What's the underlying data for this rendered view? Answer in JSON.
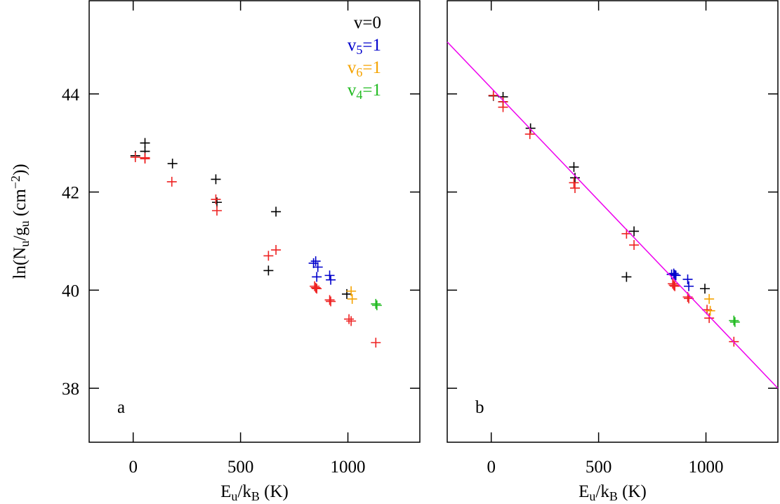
{
  "chart_data": [
    {
      "type": "scatter",
      "xlim": [
        -205,
        1335
      ],
      "ylim": [
        36.9,
        45.9
      ],
      "xticks": [
        0,
        500,
        1000
      ],
      "yticks": [
        38,
        40,
        42,
        44
      ],
      "ytick_labels": true,
      "xlabel": [
        {
          "text": "E"
        },
        {
          "text": "u",
          "script": "sub"
        },
        {
          "text": "/k"
        },
        {
          "text": "B",
          "script": "sub"
        },
        {
          "text": " (K)"
        }
      ],
      "ylabel": [
        {
          "text": "ln(N"
        },
        {
          "text": "u",
          "script": "sub"
        },
        {
          "text": "/g"
        },
        {
          "text": "u",
          "script": "sub"
        },
        {
          "text": " (cm"
        },
        {
          "text": "−2",
          "script": "super"
        },
        {
          "text": "))"
        }
      ],
      "annotation": "a",
      "series": [
        {
          "name": "v=0",
          "color": "#000000",
          "x": [
            10,
            55,
            55,
            183,
            385,
            390,
            630,
            665,
            995
          ],
          "values": [
            42.74,
            43.0,
            42.83,
            42.58,
            42.26,
            41.79,
            40.4,
            41.6,
            39.92
          ]
        },
        {
          "color": "#ee2222",
          "x": [
            10,
            55,
            55,
            180,
            385,
            390,
            630,
            665,
            845,
            850,
            855,
            915,
            920,
            1005,
            1015,
            1130
          ],
          "values": [
            42.71,
            42.7,
            42.68,
            42.21,
            41.85,
            41.62,
            40.7,
            40.82,
            40.08,
            40.05,
            40.03,
            39.8,
            39.77,
            39.41,
            39.37,
            38.93
          ]
        },
        {
          "name": "v5=1",
          "color": "#0000cc",
          "x": [
            840,
            850,
            855,
            860,
            915,
            920
          ],
          "values": [
            40.55,
            40.59,
            40.27,
            40.47,
            40.3,
            40.21
          ]
        },
        {
          "name": "v6=1",
          "color": "#f5a300",
          "x": [
            1015,
            1020
          ],
          "values": [
            39.98,
            39.82
          ]
        },
        {
          "name": "v4=1",
          "color": "#22bb22",
          "x": [
            1130,
            1135
          ],
          "values": [
            39.72,
            39.69
          ]
        }
      ]
    },
    {
      "type": "scatter",
      "xlim": [
        -205,
        1335
      ],
      "ylim": [
        36.9,
        45.9
      ],
      "xticks": [
        0,
        500,
        1000
      ],
      "yticks": [
        38,
        40,
        42,
        44
      ],
      "ytick_labels": false,
      "xlabel": [
        {
          "text": "E"
        },
        {
          "text": "u",
          "script": "sub"
        },
        {
          "text": "/k"
        },
        {
          "text": "B",
          "script": "sub"
        },
        {
          "text": " (K)"
        }
      ],
      "annotation": "b",
      "series": [
        {
          "color": "#000000",
          "x": [
            10,
            55,
            55,
            183,
            385,
            390,
            630,
            665,
            995
          ],
          "values": [
            43.96,
            43.94,
            43.84,
            43.3,
            42.51,
            42.29,
            40.27,
            41.2,
            40.03
          ]
        },
        {
          "color": "#ee2222",
          "x": [
            10,
            55,
            55,
            180,
            385,
            390,
            630,
            665,
            845,
            850,
            855,
            915,
            920,
            1005,
            1015,
            1130
          ],
          "values": [
            43.97,
            43.84,
            43.73,
            43.18,
            42.19,
            42.08,
            41.15,
            40.92,
            40.13,
            40.1,
            40.08,
            39.86,
            39.83,
            39.6,
            39.43,
            38.95
          ]
        },
        {
          "color": "#0000cc",
          "x": [
            840,
            850,
            855,
            860,
            915,
            920
          ],
          "values": [
            40.32,
            40.34,
            40.31,
            40.3,
            40.22,
            40.08
          ]
        },
        {
          "color": "#f5a300",
          "x": [
            1015,
            1020
          ],
          "values": [
            39.82,
            39.58
          ]
        },
        {
          "color": "#22bb22",
          "x": [
            1130,
            1135
          ],
          "values": [
            39.38,
            39.35
          ]
        },
        {
          "mode": "line",
          "color": "#ee00ee",
          "x": [
            -205,
            1335
          ],
          "values": [
            45.06,
            38.0
          ]
        }
      ]
    }
  ]
}
